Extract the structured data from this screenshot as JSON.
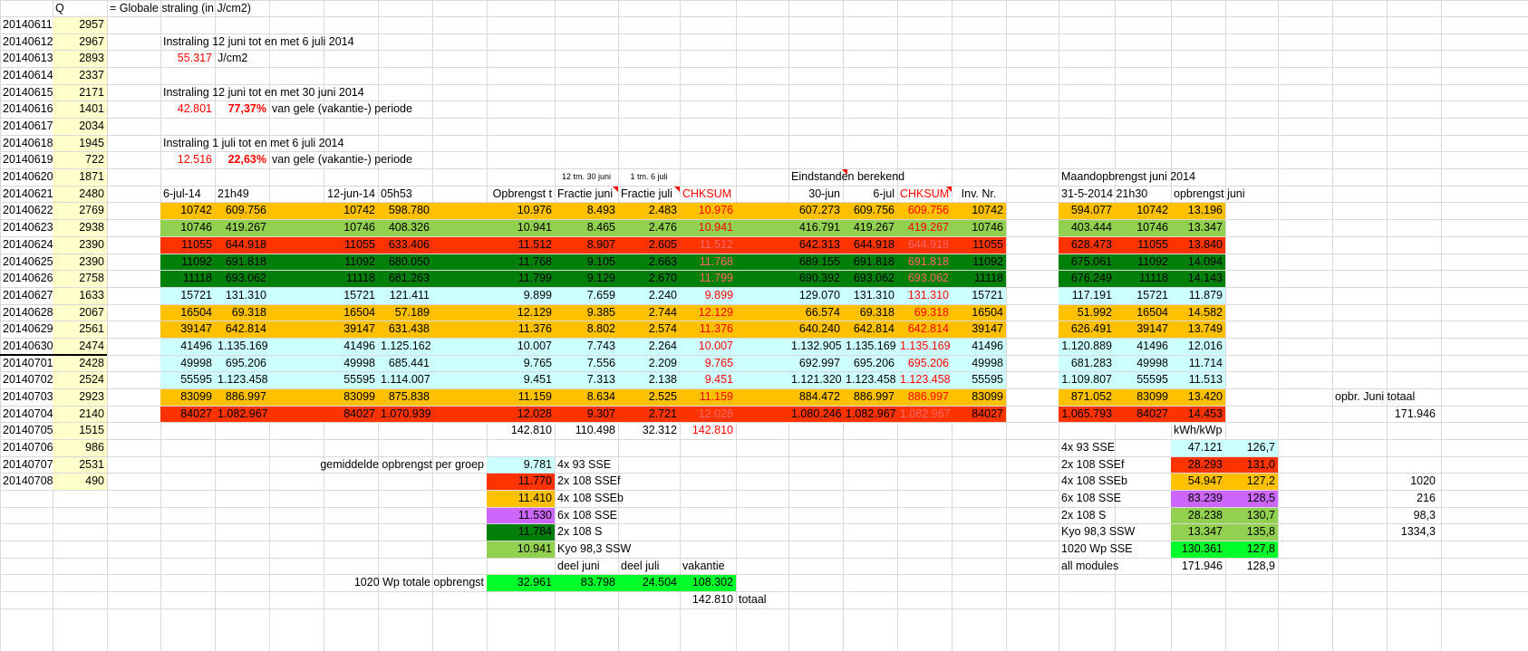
{
  "header": {
    "col_q": "Q",
    "legend": "= Globale straling (in J/cm2)"
  },
  "colors": {
    "yellow_light": "#ffffcc",
    "orange": "#ffc000",
    "green_light": "#92d050",
    "red_orange": "#ff3300",
    "green_dark": "#00800a",
    "cyan_light": "#ccffff",
    "purple": "#cc66ff",
    "green_bright": "#00ff2a"
  },
  "dates": [
    "20140611",
    "20140612",
    "20140613",
    "20140614",
    "20140615",
    "20140616",
    "20140617",
    "20140618",
    "20140619",
    "20140620",
    "20140621",
    "20140622",
    "20140623",
    "20140624",
    "20140625",
    "20140626",
    "20140627",
    "20140628",
    "20140629",
    "20140630",
    "20140701",
    "20140702",
    "20140703",
    "20140704",
    "20140705",
    "20140706",
    "20140707",
    "20140708"
  ],
  "q_values": [
    "2957",
    "2967",
    "2893",
    "2337",
    "2171",
    "1401",
    "2034",
    "1945",
    "722",
    "1871",
    "2480",
    "2769",
    "2938",
    "2390",
    "2390",
    "2758",
    "1633",
    "2067",
    "2561",
    "2474",
    "2428",
    "2524",
    "2923",
    "2140",
    "1515",
    "986",
    "2531",
    "490"
  ],
  "instraling": [
    {
      "title": "Instraling 12 juni tot en met 6 juli 2014",
      "value": "55.317",
      "unit": "J/cm2",
      "pct": "",
      "suffix": ""
    },
    {
      "title": "Instraling 12 juni tot en met 30 juni 2014",
      "value": "42.801",
      "unit": "",
      "pct": "77,37%",
      "suffix": "van gele (vakantie-) periode"
    },
    {
      "title": "Instraling 1 juli tot en met 6 juli 2014",
      "value": "12.516",
      "unit": "",
      "pct": "22,63%",
      "suffix": "van gele (vakantie-) periode"
    }
  ],
  "table": {
    "notes": {
      "junto": "12 tm. 30 juni",
      "jul": "1 tm. 6 juli",
      "eind": "Eindstanden berekend",
      "maand": "Maandopbrengst juni 2014"
    },
    "headers": [
      "6-jul-14",
      "21h49",
      "12-jun-14",
      "05h53",
      "Opbrengst t",
      "Fractie juni",
      "Fractie juli",
      "CHKSUM",
      "30-jun",
      "6-jul",
      "CHKSUM",
      "Inv. Nr.",
      "31-5-2014 21h30",
      "opbrengst juni"
    ],
    "rows": [
      {
        "color": "orange",
        "c": [
          "10742",
          "609.756",
          "10742",
          "598.780",
          "10.976",
          "8.493",
          "2.483",
          "10.976",
          "607.273",
          "609.756",
          "609.756",
          "10742",
          "594.077",
          "10742",
          "13.196"
        ]
      },
      {
        "color": "green_light",
        "c": [
          "10746",
          "419.267",
          "10746",
          "408.326",
          "10.941",
          "8.465",
          "2.476",
          "10.941",
          "416.791",
          "419.267",
          "419.267",
          "10746",
          "403.444",
          "10746",
          "13.347"
        ]
      },
      {
        "color": "red_orange",
        "c": [
          "11055",
          "644.918",
          "11055",
          "633.406",
          "11.512",
          "8.907",
          "2.605",
          "11.512",
          "642.313",
          "644.918",
          "644.918",
          "11055",
          "628.473",
          "11055",
          "13.840"
        ]
      },
      {
        "color": "green_dark",
        "c": [
          "11092",
          "691.818",
          "11092",
          "680.050",
          "11.768",
          "9.105",
          "2.663",
          "11.768",
          "689.155",
          "691.818",
          "691.818",
          "11092",
          "675.061",
          "11092",
          "14.094"
        ]
      },
      {
        "color": "green_dark",
        "c": [
          "11118",
          "693.062",
          "11118",
          "681.263",
          "11.799",
          "9.129",
          "2.670",
          "11.799",
          "690.392",
          "693.062",
          "693.062",
          "11118",
          "676.249",
          "11118",
          "14.143"
        ]
      },
      {
        "color": "cyan_light",
        "c": [
          "15721",
          "131.310",
          "15721",
          "121.411",
          "9.899",
          "7.659",
          "2.240",
          "9.899",
          "129.070",
          "131.310",
          "131.310",
          "15721",
          "117.191",
          "15721",
          "11.879"
        ]
      },
      {
        "color": "orange",
        "c": [
          "16504",
          "69.318",
          "16504",
          "57.189",
          "12.129",
          "9.385",
          "2.744",
          "12.129",
          "66.574",
          "69.318",
          "69.318",
          "16504",
          "51.992",
          "16504",
          "14.582"
        ]
      },
      {
        "color": "orange",
        "c": [
          "39147",
          "642.814",
          "39147",
          "631.438",
          "11.376",
          "8.802",
          "2.574",
          "11.376",
          "640.240",
          "642.814",
          "642.814",
          "39147",
          "626.491",
          "39147",
          "13.749"
        ]
      },
      {
        "color": "cyan_light",
        "c": [
          "41496",
          "1.135.169",
          "41496",
          "1.125.162",
          "10.007",
          "7.743",
          "2.264",
          "10.007",
          "1.132.905",
          "1.135.169",
          "1.135.169",
          "41496",
          "1.120.889",
          "41496",
          "12.016"
        ]
      },
      {
        "color": "cyan_light",
        "c": [
          "49998",
          "695.206",
          "49998",
          "685.441",
          "9.765",
          "7.556",
          "2.209",
          "9.765",
          "692.997",
          "695.206",
          "695.206",
          "49998",
          "681.283",
          "49998",
          "11.714"
        ]
      },
      {
        "color": "cyan_light",
        "c": [
          "55595",
          "1.123.458",
          "55595",
          "1.114.007",
          "9.451",
          "7.313",
          "2.138",
          "9.451",
          "1.121.320",
          "1.123.458",
          "1.123.458",
          "55595",
          "1.109.807",
          "55595",
          "11.513"
        ]
      },
      {
        "color": "orange",
        "c": [
          "83099",
          "886.997",
          "83099",
          "875.838",
          "11.159",
          "8.634",
          "2.525",
          "11.159",
          "884.472",
          "886.997",
          "886.997",
          "83099",
          "871.052",
          "83099",
          "13.420"
        ]
      },
      {
        "color": "red_orange",
        "c": [
          "84027",
          "1.082.967",
          "84027",
          "1.070.939",
          "12.028",
          "9.307",
          "2.721",
          "12.028",
          "1.080.246",
          "1.082.967",
          "1.082.967",
          "84027",
          "1.065.793",
          "84027",
          "14.453"
        ]
      }
    ],
    "totals": [
      "142.810",
      "110.498",
      "32.312",
      "142.810"
    ]
  },
  "side": {
    "label": "opbr. Juni totaal",
    "value": "171.946"
  },
  "groups": {
    "title": "gemiddelde opbrengst per groep",
    "items": [
      {
        "value": "9.781",
        "label": "4x 93 SSE",
        "color": "cyan_light"
      },
      {
        "value": "11.770",
        "label": "2x 108 SSEf",
        "color": "red_orange"
      },
      {
        "value": "11.410",
        "label": "4x 108 SSEb",
        "color": "orange"
      },
      {
        "value": "11.530",
        "label": "6x 108 SSE",
        "color": "purple"
      },
      {
        "value": "11.784",
        "label": "2x 108 S",
        "color": "green_dark"
      },
      {
        "value": "10.941",
        "label": "Kyo 98,3 SSW",
        "color": "green_light"
      }
    ],
    "col_headers": [
      "deel juni",
      "deel juli",
      "vakantie"
    ],
    "total_label": "1020 Wp totale opbrengst",
    "total_values": [
      "32.961",
      "83.798",
      "24.504",
      "108.302"
    ],
    "grand_total": "142.810",
    "grand_label": "totaal"
  },
  "summary": {
    "unit": "kWh/kWp",
    "rows": [
      {
        "label": "4x 93 SSE",
        "value": "47.121",
        "ratio": "126,7",
        "wp": "",
        "color": "cyan_light"
      },
      {
        "label": "2x 108 SSEf",
        "value": "28.293",
        "ratio": "131,0",
        "wp": "",
        "color": "red_orange"
      },
      {
        "label": "4x 108 SSEb",
        "value": "54.947",
        "ratio": "127,2",
        "wp": "1020",
        "color": "orange"
      },
      {
        "label": "6x 108 SSE",
        "value": "83.239",
        "ratio": "128,5",
        "wp": "216",
        "color": "purple"
      },
      {
        "label": "2x 108 S",
        "value": "28.238",
        "ratio": "130,7",
        "wp": "98,3",
        "color": "green_light"
      },
      {
        "label": "Kyo 98,3 SSW",
        "value": "13.347",
        "ratio": "135,8",
        "wp": "1334,3",
        "color": "green_light"
      },
      {
        "label": "1020 Wp SSE",
        "value": "130.361",
        "ratio": "127,8",
        "wp": "",
        "color": "green_bright"
      },
      {
        "label": "all modules",
        "value": "171.946",
        "ratio": "128,9",
        "wp": "",
        "color": ""
      }
    ]
  }
}
